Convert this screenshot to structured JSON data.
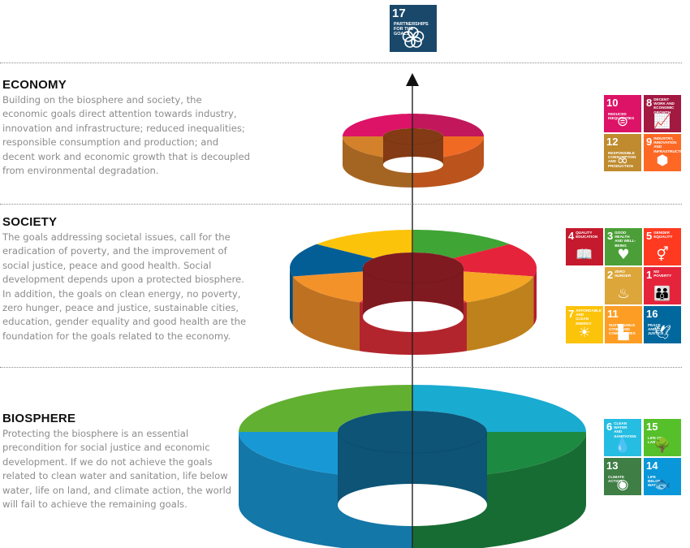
{
  "sections": {
    "economy": {
      "title": "ECONOMY",
      "text": "Building on the biosphere and society, the economic goals direct attention towards industry, innovation and infrastructure; reduced inequalities; responsible consumption and production; and decent work and economic growth that is decoupled from environmental degradation."
    },
    "society": {
      "title": "SOCIETY",
      "text": "The goals addressing societal issues, call for the eradication of poverty, and the improvement of social justice, peace and good health. Social development depends upon a protected biosphere. In addition, the goals on clean energy, no poverty, zero hunger, peace and justice, sustainable cities, education, gender equality and good health are the foundation for the goals related to the economy."
    },
    "biosphere": {
      "title": "BIOSPHERE",
      "text": "Protecting the biosphere is an essential precondition for social justice and economic development.  If we do not achieve the goals related to clean water and sanitation, life below water, life on land, and climate action, the world will fail to achieve the remaining goals."
    }
  },
  "goals": {
    "partnerships": {
      "num": "17",
      "label": "PARTNERSHIPS FOR THE GOALS",
      "color": "#19486a",
      "icon": "flower-rings-icon"
    },
    "economy": [
      {
        "num": "10",
        "label": "REDUCED INEQUALITIES",
        "color": "#dd1367",
        "icon": "equals-circle-icon",
        "glyph": "⊜"
      },
      {
        "num": "8",
        "label": "DECENT WORK AND ECONOMIC GROWTH",
        "color": "#a21942",
        "icon": "growth-chart-icon",
        "glyph": "📈"
      },
      {
        "num": "12",
        "label": "RESPONSIBLE CONSUMPTION AND PRODUCTION",
        "color": "#bf8b2e",
        "icon": "infinity-icon",
        "glyph": "∞"
      },
      {
        "num": "9",
        "label": "INDUSTRY, INNOVATION AND INFRASTRUCTURE",
        "color": "#fd6925",
        "icon": "cubes-icon",
        "glyph": "⬢"
      }
    ],
    "society": [
      {
        "num": "4",
        "label": "QUALITY EDUCATION",
        "color": "#c5192d",
        "icon": "book-icon",
        "glyph": "📖"
      },
      {
        "num": "3",
        "label": "GOOD HEALTH AND WELL-BEING",
        "color": "#4c9f38",
        "icon": "heartbeat-icon",
        "glyph": "♥"
      },
      {
        "num": "5",
        "label": "GENDER EQUALITY",
        "color": "#ff3a21",
        "icon": "gender-icon",
        "glyph": "⚥"
      },
      {
        "num": "2",
        "label": "ZERO HUNGER",
        "color": "#dda63a",
        "icon": "bowl-icon",
        "glyph": "♨"
      },
      {
        "num": "1",
        "label": "NO POVERTY",
        "color": "#e5243b",
        "icon": "family-icon",
        "glyph": "👪"
      },
      {
        "num": "7",
        "label": "AFFORDABLE AND CLEAN ENERGY",
        "color": "#fcc30b",
        "icon": "sun-icon",
        "glyph": "☀"
      },
      {
        "num": "11",
        "label": "SUSTAINABLE CITIES AND COMMUNITIES",
        "color": "#fd9d24",
        "icon": "city-icon",
        "glyph": "▙"
      },
      {
        "num": "16",
        "label": "PEACE AND JUSTICE",
        "color": "#00689d",
        "icon": "dove-icon",
        "glyph": "🕊"
      }
    ],
    "biosphere": [
      {
        "num": "6",
        "label": "CLEAN WATER AND SANITATION",
        "color": "#26bde2",
        "icon": "water-drop-icon",
        "glyph": "💧"
      },
      {
        "num": "15",
        "label": "LIFE ON LAND",
        "color": "#56c02b",
        "icon": "tree-icon",
        "glyph": "🌳"
      },
      {
        "num": "13",
        "label": "CLIMATE ACTION",
        "color": "#3f7e44",
        "icon": "eye-globe-icon",
        "glyph": "◉"
      },
      {
        "num": "14",
        "label": "LIFE BELOW WATER",
        "color": "#0a97d9",
        "icon": "fish-icon",
        "glyph": "🐟"
      }
    ]
  },
  "rings": {
    "economy": {
      "colors": [
        "#dd1367",
        "#c2185b",
        "#f06a24",
        "#d4812b"
      ]
    },
    "society": {
      "colors": [
        "#3fa535",
        "#e5243b",
        "#f5a623",
        "#e6303a",
        "#f4922a",
        "#035e96",
        "#fcc30b"
      ]
    },
    "biosphere": {
      "colors": [
        "#1aabd1",
        "#1d8a41",
        "#1899d6",
        "#62b032"
      ]
    }
  }
}
